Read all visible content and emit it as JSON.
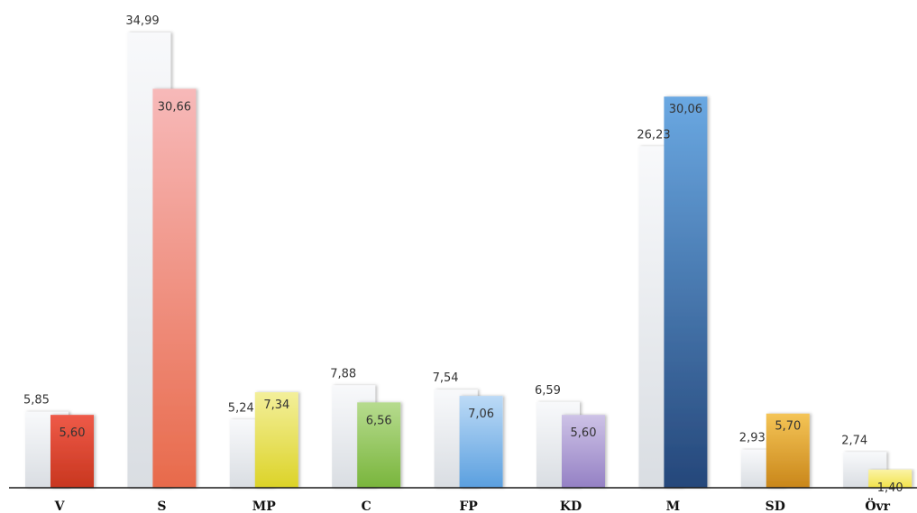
{
  "chart_data": {
    "type": "bar",
    "title": "",
    "xlabel": "",
    "ylabel": "",
    "ylim": [
      0,
      37
    ],
    "grid": false,
    "categories": [
      "V",
      "S",
      "MP",
      "C",
      "FP",
      "KD",
      "M",
      "SD",
      "Övr"
    ],
    "series": [
      {
        "values": [
          5.85,
          34.99,
          5.24,
          7.88,
          7.54,
          6.59,
          26.23,
          2.93,
          2.74
        ],
        "labels": [
          "5,85",
          "34,99",
          "5,24",
          "7,88",
          "7,54",
          "6,59",
          "26,23",
          "2,93",
          "2,74"
        ]
      },
      {
        "values": [
          5.6,
          30.66,
          7.34,
          6.56,
          7.06,
          5.6,
          30.06,
          5.7,
          1.4
        ],
        "labels": [
          "5,60",
          "30,66",
          "7,34",
          "6,56",
          "7,06",
          "5,60",
          "30,06",
          "5,70",
          "1,40"
        ]
      }
    ],
    "party_colors": [
      [
        "#ee5a48",
        "#c8361f"
      ],
      [
        "#f7b9b9",
        "#e86a4b"
      ],
      [
        "#f3ef9a",
        "#dcd328"
      ],
      [
        "#b6db8e",
        "#79b53c"
      ],
      [
        "#bcdaf6",
        "#5a9fdf"
      ],
      [
        "#cdc2e6",
        "#9480c4"
      ],
      [
        "#6aa8e2",
        "#25477a"
      ],
      [
        "#f4c456",
        "#c9861a"
      ],
      [
        "#fbf3a6",
        "#f2e24a"
      ]
    ],
    "prior_color": [
      "#f8f9fb",
      "#d9dde2"
    ]
  }
}
